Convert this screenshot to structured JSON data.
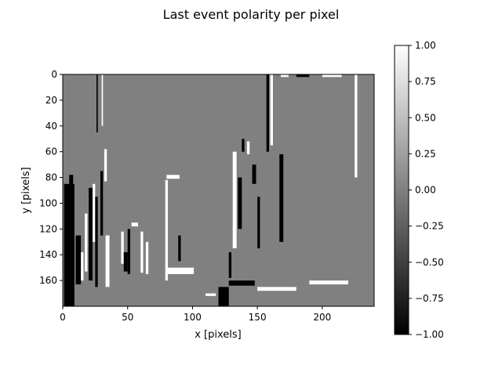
{
  "chart_data": {
    "type": "heatmap",
    "title": "Last event polarity per pixel",
    "xlabel": "x [pixels]",
    "ylabel": "y [pixels]",
    "xlim": [
      0,
      240
    ],
    "ylim": [
      180,
      0
    ],
    "x_ticks": [
      0,
      50,
      100,
      150,
      200
    ],
    "x_tick_labels": [
      "0",
      "50",
      "100",
      "150",
      "200"
    ],
    "y_ticks": [
      0,
      20,
      40,
      60,
      80,
      100,
      120,
      140,
      160
    ],
    "y_tick_labels": [
      "0",
      "20",
      "40",
      "60",
      "80",
      "100",
      "120",
      "140",
      "160"
    ],
    "colormap": "gray",
    "value_range": [
      -1,
      1
    ],
    "background_value": 0,
    "colorbar": {
      "ticks": [
        1.0,
        0.75,
        0.5,
        0.25,
        0.0,
        -0.25,
        -0.5,
        -0.75,
        -1.0
      ],
      "tick_labels": [
        "1.00",
        "0.75",
        "0.50",
        "0.25",
        "0.00",
        "−0.25",
        "−0.50",
        "−0.75",
        "−1.00"
      ]
    },
    "grid": false,
    "structures": [
      {
        "x": 1,
        "y": 85,
        "w": 8,
        "h": 95,
        "value": -1
      },
      {
        "x": 5,
        "y": 78,
        "w": 3,
        "h": 12,
        "value": -1
      },
      {
        "x": 10,
        "y": 125,
        "w": 4,
        "h": 38,
        "value": -1
      },
      {
        "x": 14,
        "y": 138,
        "w": 2,
        "h": 22,
        "value": 1
      },
      {
        "x": 17,
        "y": 108,
        "w": 2,
        "h": 45,
        "value": 1
      },
      {
        "x": 20,
        "y": 88,
        "w": 3,
        "h": 72,
        "value": -1
      },
      {
        "x": 23,
        "y": 85,
        "w": 2,
        "h": 45,
        "value": 1
      },
      {
        "x": 25,
        "y": 95,
        "w": 2,
        "h": 70,
        "value": -1
      },
      {
        "x": 26,
        "y": 0,
        "w": 1,
        "h": 45,
        "value": -1
      },
      {
        "x": 30,
        "y": 0,
        "w": 1,
        "h": 40,
        "value": 1
      },
      {
        "x": 29,
        "y": 75,
        "w": 2,
        "h": 50,
        "value": -1
      },
      {
        "x": 32,
        "y": 58,
        "w": 2,
        "h": 25,
        "value": 1
      },
      {
        "x": 33,
        "y": 125,
        "w": 3,
        "h": 40,
        "value": 1
      },
      {
        "x": 45,
        "y": 122,
        "w": 2,
        "h": 25,
        "value": 1
      },
      {
        "x": 47,
        "y": 138,
        "w": 3,
        "h": 15,
        "value": -1
      },
      {
        "x": 50,
        "y": 120,
        "w": 2,
        "h": 35,
        "value": -1
      },
      {
        "x": 53,
        "y": 115,
        "w": 5,
        "h": 3,
        "value": 1
      },
      {
        "x": 60,
        "y": 122,
        "w": 2,
        "h": 32,
        "value": 1
      },
      {
        "x": 64,
        "y": 130,
        "w": 2,
        "h": 25,
        "value": 1
      },
      {
        "x": 79,
        "y": 82,
        "w": 2,
        "h": 78,
        "value": 1
      },
      {
        "x": 80,
        "y": 78,
        "w": 10,
        "h": 3,
        "value": 1
      },
      {
        "x": 81,
        "y": 150,
        "w": 20,
        "h": 5,
        "value": 1
      },
      {
        "x": 89,
        "y": 125,
        "w": 2,
        "h": 20,
        "value": -1
      },
      {
        "x": 128,
        "y": 138,
        "w": 2,
        "h": 20,
        "value": -1
      },
      {
        "x": 131,
        "y": 60,
        "w": 3,
        "h": 75,
        "value": 1
      },
      {
        "x": 135,
        "y": 80,
        "w": 3,
        "h": 40,
        "value": -1
      },
      {
        "x": 138,
        "y": 50,
        "w": 2,
        "h": 10,
        "value": -1
      },
      {
        "x": 142,
        "y": 52,
        "w": 2,
        "h": 10,
        "value": 1
      },
      {
        "x": 146,
        "y": 70,
        "w": 3,
        "h": 15,
        "value": -1
      },
      {
        "x": 150,
        "y": 95,
        "w": 2,
        "h": 40,
        "value": -1
      },
      {
        "x": 157,
        "y": 0,
        "w": 2,
        "h": 60,
        "value": -1
      },
      {
        "x": 160,
        "y": 0,
        "w": 2,
        "h": 55,
        "value": 1
      },
      {
        "x": 167,
        "y": 62,
        "w": 3,
        "h": 68,
        "value": -1
      },
      {
        "x": 168,
        "y": 0,
        "w": 6,
        "h": 2,
        "value": 1
      },
      {
        "x": 180,
        "y": 0,
        "w": 10,
        "h": 2,
        "value": -1
      },
      {
        "x": 200,
        "y": 0,
        "w": 15,
        "h": 2,
        "value": 1
      },
      {
        "x": 225,
        "y": 0,
        "w": 2,
        "h": 80,
        "value": 1
      },
      {
        "x": 110,
        "y": 170,
        "w": 8,
        "h": 2,
        "value": 1
      },
      {
        "x": 120,
        "y": 165,
        "w": 8,
        "h": 15,
        "value": -1
      },
      {
        "x": 128,
        "y": 160,
        "w": 20,
        "h": 4,
        "value": -1
      },
      {
        "x": 150,
        "y": 165,
        "w": 30,
        "h": 3,
        "value": 1
      },
      {
        "x": 190,
        "y": 160,
        "w": 30,
        "h": 3,
        "value": 1
      }
    ]
  }
}
